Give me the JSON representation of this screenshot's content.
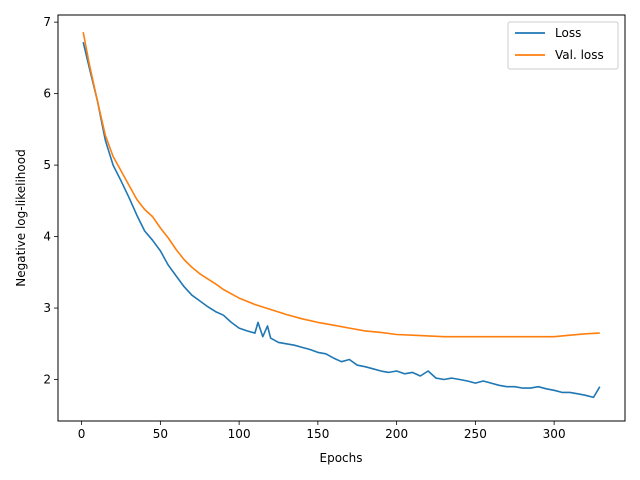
{
  "chart_data": {
    "type": "line",
    "title": "",
    "xlabel": "Epochs",
    "ylabel": "Negative log-likelihood",
    "xlim": [
      -15,
      345
    ],
    "ylim": [
      1.42,
      7.1
    ],
    "x_ticks": [
      0,
      50,
      100,
      150,
      200,
      250,
      300
    ],
    "y_ticks": [
      2,
      3,
      4,
      5,
      6,
      7
    ],
    "grid": false,
    "legend_position": "top-right",
    "series": [
      {
        "name": "Loss",
        "color": "#1f77b4",
        "x": [
          1,
          5,
          10,
          15,
          20,
          25,
          30,
          35,
          40,
          45,
          50,
          55,
          60,
          65,
          70,
          75,
          80,
          85,
          90,
          95,
          100,
          105,
          110,
          112,
          115,
          118,
          120,
          125,
          130,
          135,
          140,
          145,
          150,
          155,
          160,
          165,
          170,
          175,
          180,
          185,
          190,
          195,
          200,
          205,
          210,
          215,
          220,
          225,
          230,
          235,
          240,
          245,
          250,
          255,
          260,
          265,
          270,
          275,
          280,
          285,
          290,
          295,
          300,
          305,
          310,
          315,
          320,
          325,
          329
        ],
        "values": [
          6.72,
          6.35,
          5.9,
          5.35,
          5.0,
          4.78,
          4.55,
          4.3,
          4.08,
          3.95,
          3.8,
          3.6,
          3.45,
          3.3,
          3.18,
          3.1,
          3.02,
          2.95,
          2.9,
          2.8,
          2.72,
          2.68,
          2.65,
          2.8,
          2.6,
          2.75,
          2.58,
          2.52,
          2.5,
          2.48,
          2.45,
          2.42,
          2.38,
          2.36,
          2.3,
          2.25,
          2.28,
          2.2,
          2.18,
          2.15,
          2.12,
          2.1,
          2.12,
          2.08,
          2.1,
          2.05,
          2.12,
          2.02,
          2.0,
          2.02,
          2.0,
          1.98,
          1.95,
          1.98,
          1.95,
          1.92,
          1.9,
          1.9,
          1.88,
          1.88,
          1.9,
          1.87,
          1.85,
          1.82,
          1.82,
          1.8,
          1.78,
          1.75,
          1.9
        ]
      },
      {
        "name": "Val. loss",
        "color": "#ff7f0e",
        "x": [
          1,
          5,
          10,
          15,
          20,
          25,
          30,
          35,
          40,
          45,
          50,
          55,
          60,
          65,
          70,
          75,
          80,
          85,
          90,
          95,
          100,
          110,
          120,
          130,
          140,
          150,
          160,
          170,
          180,
          190,
          200,
          210,
          220,
          230,
          240,
          250,
          260,
          270,
          280,
          290,
          300,
          310,
          320,
          329
        ],
        "values": [
          6.86,
          6.4,
          5.9,
          5.42,
          5.12,
          4.92,
          4.72,
          4.52,
          4.38,
          4.28,
          4.12,
          3.98,
          3.82,
          3.68,
          3.57,
          3.48,
          3.41,
          3.34,
          3.26,
          3.2,
          3.14,
          3.05,
          2.98,
          2.91,
          2.85,
          2.8,
          2.76,
          2.72,
          2.68,
          2.66,
          2.63,
          2.62,
          2.61,
          2.6,
          2.6,
          2.6,
          2.6,
          2.6,
          2.6,
          2.6,
          2.6,
          2.62,
          2.64,
          2.65
        ]
      }
    ]
  }
}
